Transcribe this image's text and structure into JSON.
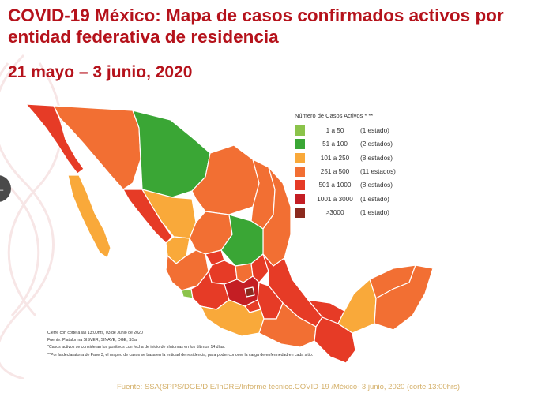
{
  "title": "COVID-19 México: Mapa de casos confirmados activos por entidad federativa de residencia",
  "date_range": "21 mayo – 3 junio, 2020",
  "side_tab_icon": "arrow-left-icon",
  "legend": {
    "title": "Número de Casos Activos * **",
    "items": [
      {
        "range": "1 a 50",
        "count": "(1 estado)",
        "color": "#8bc34a"
      },
      {
        "range": "51 a 100",
        "count": "(2 estados)",
        "color": "#3aa635"
      },
      {
        "range": "101 a 250",
        "count": "(8 estados)",
        "color": "#f9a93a"
      },
      {
        "range": "251 a 500",
        "count": "(11 estados)",
        "color": "#f26f33"
      },
      {
        "range": "501 a 1000",
        "count": "(8 estados)",
        "color": "#e63b26"
      },
      {
        "range": "1001 a 3000",
        "count": "(1 estado)",
        "color": "#c41e24"
      },
      {
        "range": ">3000",
        "count": "(1 estado)",
        "color": "#8b2a1e"
      }
    ]
  },
  "notes": [
    "Cierre con corte a las 13:00hrs, 03 de Junio de 2020",
    "Fuente: Plataforma SISVER, SINAVE, DGE, SSa.",
    "*Casos activos se consideran los positivos con fecha de inicio de síntomas en los últimos 14 días.",
    "**Por la declaratoria de Fase 3, el mapeo de casos se basa en la entidad de residencia, para poder conocer la carga de enfermedad en cada sitio."
  ],
  "footer": "Fuente: SSA(SPPS/DGE/DIE/InDRE/Informe técnico.COVID-19 /México- 3 junio, 2020 (corte 13:00hrs)"
}
